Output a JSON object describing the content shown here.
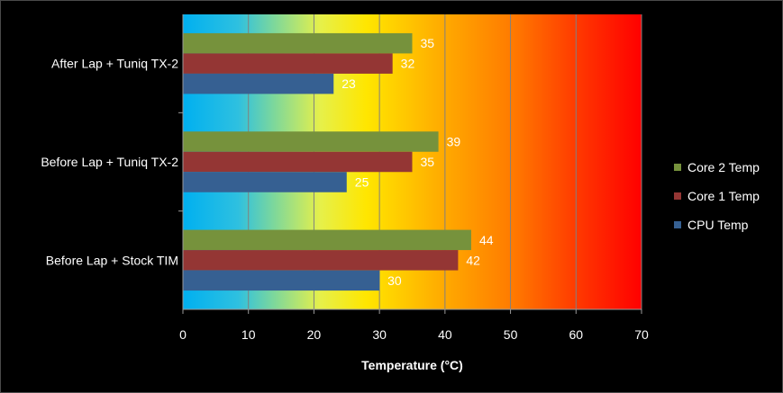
{
  "chart_data": {
    "type": "bar",
    "orientation": "horizontal",
    "categories": [
      "After Lap + Tuniq TX-2",
      "Before Lap + Tuniq TX-2",
      "Before Lap + Stock TIM"
    ],
    "series": [
      {
        "name": "Core 2 Temp",
        "color": "#76923c",
        "values": [
          35,
          39,
          44
        ]
      },
      {
        "name": "Core 1 Temp",
        "color": "#943634",
        "values": [
          32,
          35,
          42
        ]
      },
      {
        "name": "CPU Temp",
        "color": "#366092",
        "values": [
          23,
          25,
          30
        ]
      }
    ],
    "xlabel": "Temperature (°C)",
    "ylabel": "",
    "xlim": [
      0,
      70
    ],
    "xticks": [
      "0",
      "10",
      "20",
      "30",
      "40",
      "50",
      "60",
      "70"
    ],
    "grid": true,
    "legend_position": "right",
    "background_gradient": [
      "#00b0f0",
      "#ffff00",
      "#ff8000",
      "#ff0000"
    ]
  }
}
